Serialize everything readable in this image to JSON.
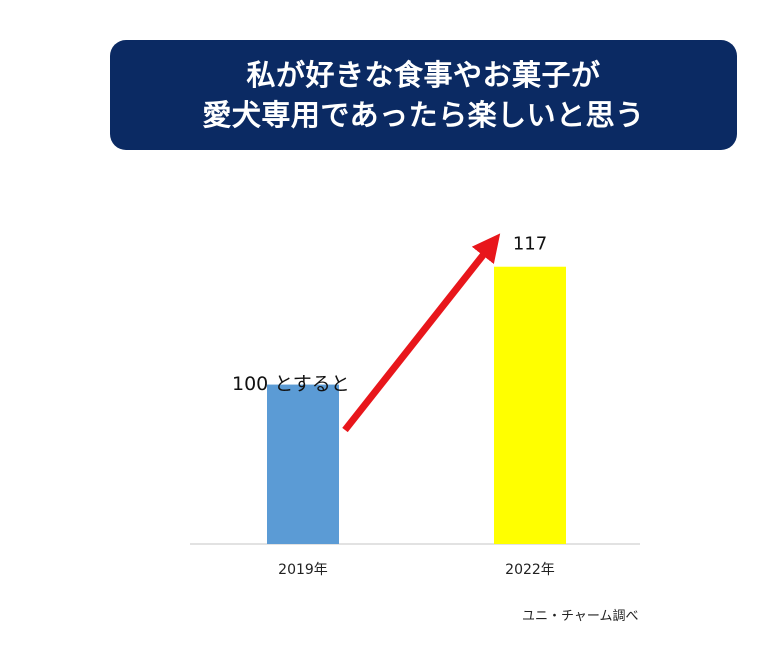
{
  "title": {
    "line1": "私が好きな食事やお菓子が",
    "line2": "愛犬専用であったら楽しいと思う"
  },
  "annotation": "100 とすると",
  "source": "ユニ・チャーム調べ",
  "colors": {
    "title_bg": "#0b2a63",
    "bar_2019": "#5b9bd5",
    "bar_2022": "#ffff00",
    "arrow": "#e8161b",
    "axis": "#d9d9d9"
  },
  "chart_data": {
    "type": "bar",
    "categories": [
      "2019年",
      "2022年"
    ],
    "values": [
      100,
      117
    ],
    "data_labels": [
      "",
      "117"
    ],
    "ylim": [
      77,
      121
    ]
  }
}
